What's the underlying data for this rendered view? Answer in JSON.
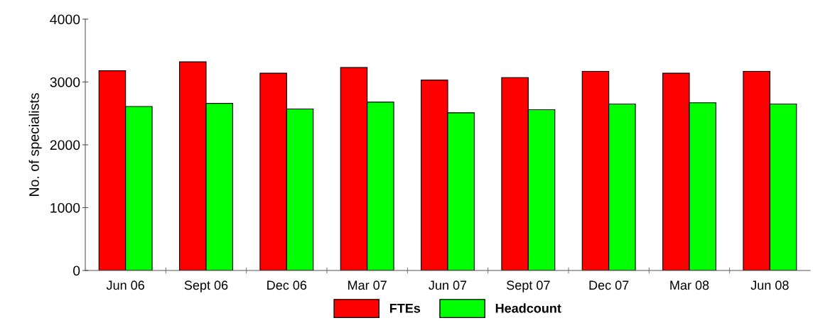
{
  "chart_data": {
    "type": "bar",
    "ylabel": "No. of specialists",
    "categories": [
      "Jun 06",
      "Sept 06",
      "Dec 06",
      "Mar 07",
      "Jun 07",
      "Sept 07",
      "Dec 07",
      "Mar 08",
      "Jun 08"
    ],
    "series": [
      {
        "name": "FTEs",
        "color": "#ff0000",
        "values": [
          3180,
          3320,
          3140,
          3230,
          3030,
          3070,
          3170,
          3140,
          3170
        ]
      },
      {
        "name": "Headcount",
        "color": "#00ff00",
        "values": [
          2610,
          2660,
          2570,
          2680,
          2510,
          2560,
          2650,
          2670,
          2650
        ]
      }
    ],
    "ylim": [
      0,
      4000
    ],
    "yticks": [
      0,
      1000,
      2000,
      3000,
      4000
    ],
    "grid": false,
    "legend": "bottom"
  }
}
